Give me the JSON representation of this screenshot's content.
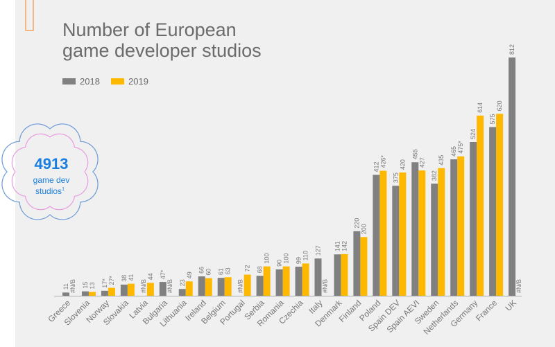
{
  "chart_data": {
    "type": "bar",
    "title": [
      "Number of European",
      "game developer studios"
    ],
    "xlabel": "",
    "ylabel": "",
    "ylim": [
      0,
      812
    ],
    "grid": false,
    "legend_placement": "top-left",
    "categories": [
      "Greece",
      "Slovenia",
      "Norway",
      "Slovakia",
      "Latvia",
      "Bulgaria",
      "Lithuania",
      "Ireland",
      "Belgium",
      "Portugal",
      "Serbia",
      "Romania",
      "Czechia",
      "Italy",
      "Denmark",
      "Finland",
      "Poland",
      "Spain DEV",
      "Spain AEVI",
      "Sweden",
      "Netherlands",
      "Germany",
      "France",
      "UK"
    ],
    "series": [
      {
        "name": "2018",
        "color": "#808080",
        "values": [
          11,
          15,
          17,
          38,
          null,
          47,
          23,
          66,
          61,
          null,
          68,
          90,
          99,
          127,
          141,
          220,
          412,
          375,
          455,
          382,
          465,
          524,
          575,
          812
        ],
        "labels": [
          "11",
          "15",
          "17*",
          "38",
          "#N/B",
          "47*",
          "23",
          "66",
          "61",
          "#N/B",
          "68",
          "90",
          "99",
          "127",
          "141",
          "220",
          "412",
          "375",
          "455",
          "382",
          "465",
          "524",
          "575",
          "812"
        ]
      },
      {
        "name": "2019",
        "color": "#ffb800",
        "values": [
          null,
          13,
          27,
          41,
          44,
          null,
          49,
          60,
          63,
          72,
          100,
          100,
          110,
          null,
          142,
          200,
          426,
          420,
          427,
          435,
          475,
          614,
          620,
          null
        ],
        "labels": [
          "#N/B",
          "13",
          "27*",
          "41",
          "44",
          "#N/B",
          "49",
          "60",
          "63",
          "72",
          "100",
          "100",
          "110",
          "#N/B",
          "142",
          "200",
          "426*",
          "420",
          "427",
          "435",
          "475*",
          "614",
          "620",
          "#N/B"
        ]
      }
    ]
  },
  "badge": {
    "number": "4913",
    "line1": "game dev",
    "line2": "studios",
    "footnote": "1"
  },
  "colors": {
    "accent_orange": "#f7a35c",
    "badge_blue": "#1a7fe0",
    "badge_outline": "#6a9ad6",
    "badge_inner": "#e89ae0"
  }
}
